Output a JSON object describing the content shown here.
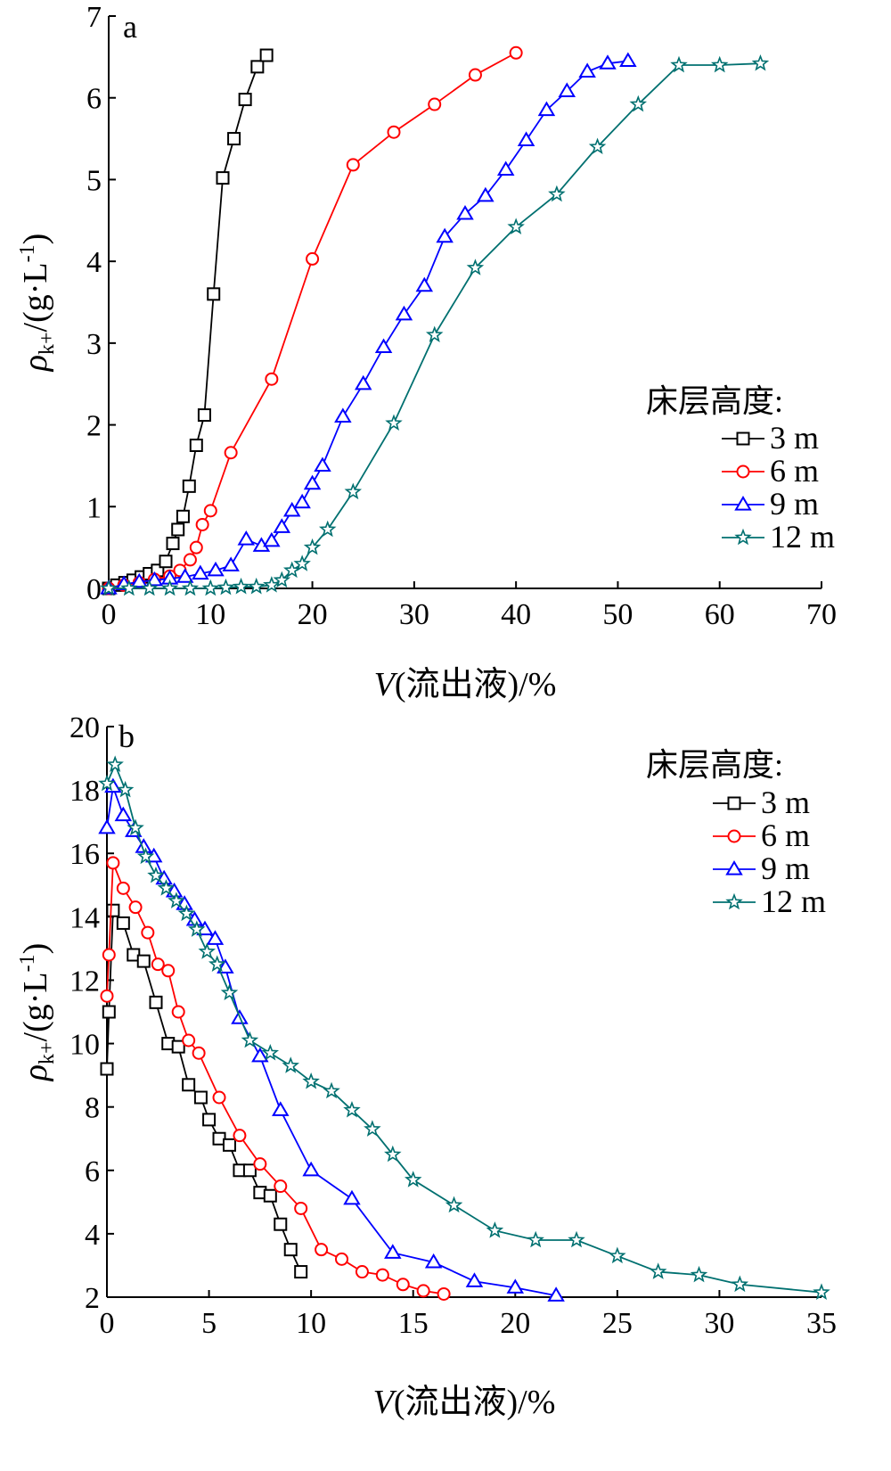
{
  "chart_data": [
    {
      "type": "line",
      "panel": "a",
      "xlabel_var": "V",
      "xlabel_rest": "(流出液)/%",
      "ylabel_sym": "ρ",
      "ylabel_sub": "k+",
      "ylabel_rest": "/(g·L",
      "ylabel_sup": "-1",
      "ylabel_close": ")",
      "xlim": [
        0,
        70
      ],
      "ylim": [
        0,
        7
      ],
      "xticks": [
        0,
        10,
        20,
        30,
        40,
        50,
        60,
        70
      ],
      "yticks": [
        0,
        1,
        2,
        3,
        4,
        5,
        6,
        7
      ],
      "legend_title": "床层高度:",
      "legend_position": "right-middle",
      "series": [
        {
          "name": "3 m",
          "color": "#000000",
          "marker": "square",
          "x": [
            0,
            0.8,
            1.6,
            2.4,
            3.2,
            4.0,
            4.8,
            5.6,
            6.3,
            6.8,
            7.3,
            7.9,
            8.6,
            9.4,
            10.3,
            11.2,
            12.3,
            13.4,
            14.6,
            15.5
          ],
          "y": [
            0,
            0.04,
            0.07,
            0.1,
            0.14,
            0.18,
            0.22,
            0.33,
            0.55,
            0.72,
            0.88,
            1.25,
            1.75,
            2.12,
            3.6,
            5.02,
            5.5,
            5.98,
            6.38,
            6.52
          ]
        },
        {
          "name": "6 m",
          "color": "#ff0000",
          "marker": "circle",
          "x": [
            0,
            1.5,
            3,
            4.5,
            6,
            7,
            8,
            8.6,
            9.2,
            10,
            12,
            16,
            20,
            24,
            28,
            32,
            36,
            40
          ],
          "y": [
            0,
            0.04,
            0.07,
            0.11,
            0.15,
            0.22,
            0.35,
            0.5,
            0.78,
            0.95,
            1.66,
            2.56,
            4.03,
            5.18,
            5.58,
            5.92,
            6.28,
            6.55
          ]
        },
        {
          "name": "9 m",
          "color": "#0000ff",
          "marker": "triangle",
          "x": [
            0,
            1.5,
            3,
            4.5,
            6,
            7.5,
            9,
            10.5,
            12,
            13.5,
            15,
            16,
            17,
            18,
            19,
            20,
            21,
            23,
            25,
            27,
            29,
            31,
            33,
            35,
            37,
            39,
            41,
            43,
            45,
            47,
            49,
            51
          ],
          "y": [
            0,
            0.05,
            0.08,
            0.1,
            0.12,
            0.14,
            0.18,
            0.22,
            0.28,
            0.6,
            0.52,
            0.58,
            0.75,
            0.95,
            1.05,
            1.28,
            1.5,
            2.1,
            2.5,
            2.95,
            3.35,
            3.7,
            4.3,
            4.58,
            4.8,
            5.12,
            5.48,
            5.85,
            6.08,
            6.32,
            6.42,
            6.45
          ]
        },
        {
          "name": "12 m",
          "color": "#007070",
          "marker": "star",
          "x": [
            0,
            2,
            4,
            6,
            8,
            10,
            11.5,
            13,
            14.5,
            16,
            17,
            18,
            19,
            20,
            21.5,
            24,
            28,
            32,
            36,
            40,
            44,
            48,
            52,
            56,
            60,
            64
          ],
          "y": [
            0,
            0,
            0,
            0,
            0,
            0,
            0.01,
            0.02,
            0.02,
            0.04,
            0.1,
            0.22,
            0.3,
            0.5,
            0.72,
            1.18,
            2.02,
            3.1,
            3.92,
            4.42,
            4.82,
            5.4,
            5.92,
            6.4,
            6.4,
            6.42
          ]
        }
      ]
    },
    {
      "type": "line",
      "panel": "b",
      "xlabel_var": "V",
      "xlabel_rest": "(流出液)/%",
      "ylabel_sym": "ρ",
      "ylabel_sub": "k+",
      "ylabel_rest": "/(g·L",
      "ylabel_sup": "-1",
      "ylabel_close": ")",
      "xlim": [
        0,
        35
      ],
      "ylim": [
        2,
        20
      ],
      "xticks": [
        0,
        5,
        10,
        15,
        20,
        25,
        30,
        35
      ],
      "yticks": [
        2,
        4,
        6,
        8,
        10,
        12,
        14,
        16,
        18,
        20
      ],
      "legend_title": "床层高度:",
      "legend_position": "top-right",
      "series": [
        {
          "name": "3 m",
          "color": "#000000",
          "marker": "square",
          "x": [
            0,
            0.1,
            0.3,
            0.8,
            1.3,
            1.8,
            2.4,
            3.0,
            3.5,
            4.0,
            4.6,
            5.0,
            5.5,
            6.0,
            6.5,
            7.0,
            7.5,
            8.0,
            8.5,
            9.0,
            9.5
          ],
          "y": [
            9.2,
            11.0,
            14.2,
            13.8,
            12.8,
            12.6,
            11.3,
            10.0,
            9.9,
            8.7,
            8.3,
            7.6,
            7.0,
            6.8,
            6.0,
            6.0,
            5.3,
            5.2,
            4.3,
            3.5,
            2.8
          ]
        },
        {
          "name": "6 m",
          "color": "#ff0000",
          "marker": "circle",
          "x": [
            0,
            0.1,
            0.3,
            0.8,
            1.4,
            2.0,
            2.5,
            3.0,
            3.5,
            4.0,
            4.5,
            5.5,
            6.5,
            7.5,
            8.5,
            9.5,
            10.5,
            11.5,
            12.5,
            13.5,
            14.5,
            15.5,
            16.5
          ],
          "y": [
            11.5,
            12.8,
            15.7,
            14.9,
            14.3,
            13.5,
            12.5,
            12.3,
            11.0,
            10.1,
            9.7,
            8.3,
            7.1,
            6.2,
            5.5,
            4.8,
            3.5,
            3.2,
            2.8,
            2.7,
            2.4,
            2.2,
            2.1
          ]
        },
        {
          "name": "9 m",
          "color": "#0000ff",
          "marker": "triangle",
          "x": [
            0,
            0.3,
            0.8,
            1.3,
            1.8,
            2.3,
            2.8,
            3.3,
            3.8,
            4.3,
            4.8,
            5.3,
            5.8,
            6.5,
            7.5,
            8.5,
            10,
            12,
            14,
            16,
            18,
            20,
            22
          ],
          "y": [
            16.8,
            18.1,
            17.2,
            16.7,
            16.2,
            15.9,
            15.2,
            14.8,
            14.4,
            13.9,
            13.6,
            13.3,
            12.4,
            10.8,
            9.6,
            7.9,
            6.0,
            5.1,
            3.4,
            3.1,
            2.5,
            2.3,
            2.05
          ]
        },
        {
          "name": "12 m",
          "color": "#007070",
          "marker": "star",
          "x": [
            0,
            0.4,
            0.9,
            1.4,
            1.9,
            2.4,
            2.9,
            3.4,
            3.9,
            4.4,
            4.9,
            5.4,
            6.0,
            7.0,
            8.0,
            9.0,
            10.0,
            11.0,
            12.0,
            13.0,
            14.0,
            15.0,
            17.0,
            19.0,
            21.0,
            23.0,
            25.0,
            27.0,
            29.0,
            31.0,
            35.0
          ],
          "y": [
            18.2,
            18.8,
            18.0,
            16.8,
            15.9,
            15.3,
            14.9,
            14.5,
            14.1,
            13.6,
            12.9,
            12.5,
            11.6,
            10.1,
            9.7,
            9.3,
            8.8,
            8.5,
            7.9,
            7.3,
            6.5,
            5.7,
            4.9,
            4.1,
            3.8,
            3.8,
            3.3,
            2.8,
            2.7,
            2.4,
            2.15
          ]
        }
      ]
    }
  ]
}
